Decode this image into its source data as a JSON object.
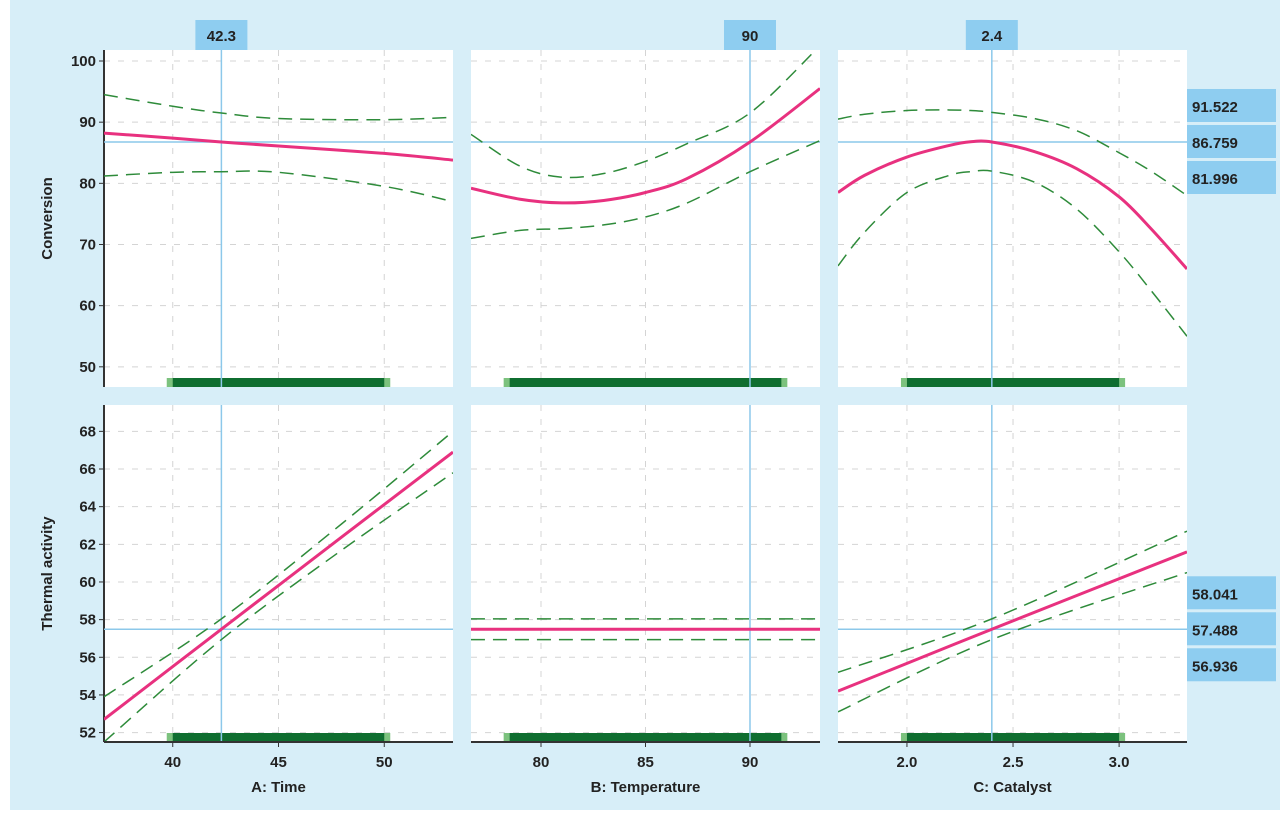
{
  "chart_data": {
    "type": "line",
    "title": "",
    "colors": {
      "background": "#d7eef8",
      "prediction": "#e8317f",
      "ci": "#2e8b3a",
      "crosshair": "#8cc8ea",
      "value_box": "#8ecdf0",
      "range_bar": "#0f6e30",
      "range_bar_end": "#7cc27e"
    },
    "grid": true,
    "factors": [
      {
        "label": "A: Time",
        "current": 42.3,
        "current_label": "42.3",
        "xlim": [
          36.75,
          53.25
        ],
        "ticks": [
          40,
          45,
          50
        ],
        "tick_labels": [
          "40",
          "45",
          "50"
        ],
        "range": [
          40,
          50
        ]
      },
      {
        "label": "B: Temperature",
        "current": 90,
        "current_label": "90",
        "xlim": [
          76.65,
          93.35
        ],
        "ticks": [
          80,
          85,
          90
        ],
        "tick_labels": [
          "80",
          "85",
          "90"
        ],
        "range": [
          78.5,
          91.5
        ]
      },
      {
        "label": "C: Catalyst",
        "current": 2.4,
        "current_label": "2.4",
        "xlim": [
          1.675,
          3.32
        ],
        "ticks": [
          2.0,
          2.5,
          3.0
        ],
        "tick_labels": [
          "2.0",
          "2.5",
          "3.0"
        ],
        "range": [
          2.0,
          3.0
        ]
      }
    ],
    "responses": [
      {
        "label": "Conversion",
        "ylim": [
          46.7,
          101.8
        ],
        "ticks": [
          50,
          60,
          70,
          80,
          90,
          100
        ],
        "tick_labels": [
          "50",
          "60",
          "70",
          "80",
          "90",
          "100"
        ],
        "predicted": "86.759",
        "upper": "91.522",
        "lower": "81.996",
        "predicted_value": 86.759,
        "curves": [
          {
            "x": [
              36.75,
              40,
              42.3,
              45,
              50,
              53.25
            ],
            "y": [
              88.2,
              87.4,
              86.76,
              86.1,
              84.9,
              83.8
            ],
            "upper": [
              94.5,
              92.6,
              91.5,
              90.6,
              90.4,
              90.8
            ],
            "lower": [
              81.2,
              81.8,
              81.9,
              81.8,
              79.5,
              77.0
            ]
          },
          {
            "x": [
              76.65,
              79,
              81,
              83,
              85,
              87,
              90,
              93.35
            ],
            "y": [
              79.2,
              77.4,
              76.8,
              77.2,
              78.5,
              80.8,
              86.76,
              95.5
            ],
            "upper": [
              88.0,
              82.8,
              81.0,
              81.6,
              83.6,
              86.5,
              91.5,
              102.5
            ],
            "lower": [
              71.0,
              72.3,
              72.6,
              73.2,
              74.5,
              76.8,
              81.9,
              87.0
            ]
          },
          {
            "x": [
              1.675,
              1.8,
              2.0,
              2.2,
              2.3,
              2.4,
              2.6,
              2.8,
              3.0,
              3.15,
              3.32
            ],
            "y": [
              78.5,
              81.3,
              84.3,
              86.2,
              86.8,
              86.76,
              85.2,
              82.4,
              77.8,
              72.6,
              66.0
            ],
            "upper": [
              90.5,
              91.3,
              91.9,
              92.0,
              91.9,
              91.6,
              90.6,
              88.6,
              85.0,
              82.0,
              78.0
            ],
            "lower": [
              66.5,
              72.0,
              78.5,
              81.3,
              81.9,
              82.0,
              80.2,
              75.8,
              68.8,
              62.5,
              55.0
            ]
          }
        ]
      },
      {
        "label": "Thermal activity",
        "ylim": [
          51.5,
          69.4
        ],
        "ticks": [
          52,
          54,
          56,
          58,
          60,
          62,
          64,
          66,
          68
        ],
        "tick_labels": [
          "52",
          "54",
          "56",
          "58",
          "60",
          "62",
          "64",
          "66",
          "68"
        ],
        "predicted": "57.488",
        "upper": "58.041",
        "lower": "56.936",
        "predicted_value": 57.488,
        "curves": [
          {
            "x": [
              36.75,
              42.3,
              48,
              53.25
            ],
            "y": [
              52.7,
              57.49,
              62.4,
              66.9
            ],
            "upper": [
              53.9,
              58.04,
              63.1,
              68.0
            ],
            "lower": [
              51.5,
              56.94,
              61.7,
              65.8
            ]
          },
          {
            "x": [
              76.65,
              93.35
            ],
            "y": [
              57.49,
              57.49
            ],
            "upper": [
              58.04,
              58.04
            ],
            "lower": [
              56.94,
              56.94
            ]
          },
          {
            "x": [
              1.675,
              2.4,
              3.32
            ],
            "y": [
              54.2,
              57.49,
              61.6
            ],
            "upper": [
              55.2,
              58.04,
              62.7
            ],
            "lower": [
              53.1,
              56.94,
              60.5
            ]
          }
        ]
      }
    ]
  }
}
